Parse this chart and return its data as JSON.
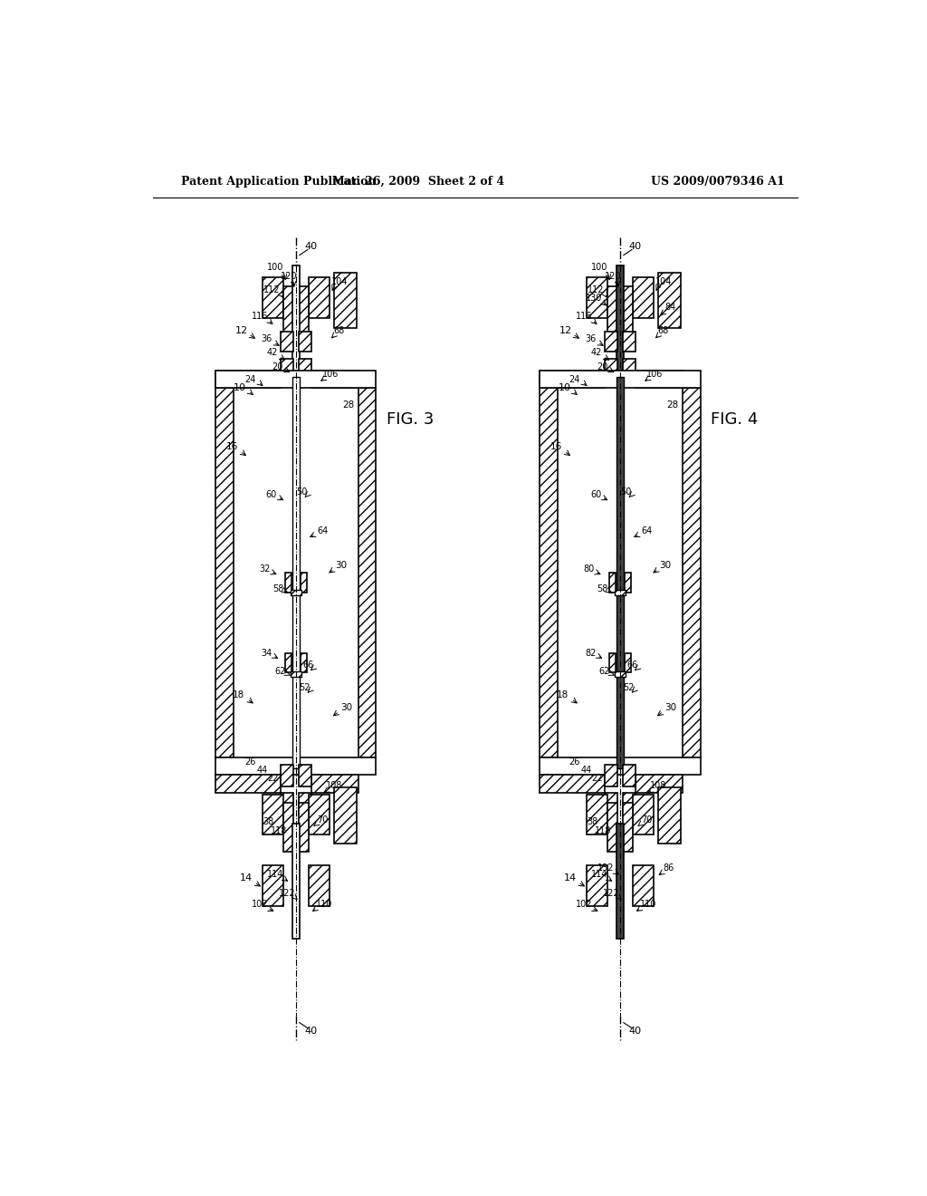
{
  "title_left": "Patent Application Publication",
  "title_mid": "Mar. 26, 2009  Sheet 2 of 4",
  "title_right": "US 2009/0079346 A1",
  "fig3_label": "FIG. 3",
  "fig4_label": "FIG. 4",
  "bg_color": "#ffffff",
  "line_color": "#000000"
}
